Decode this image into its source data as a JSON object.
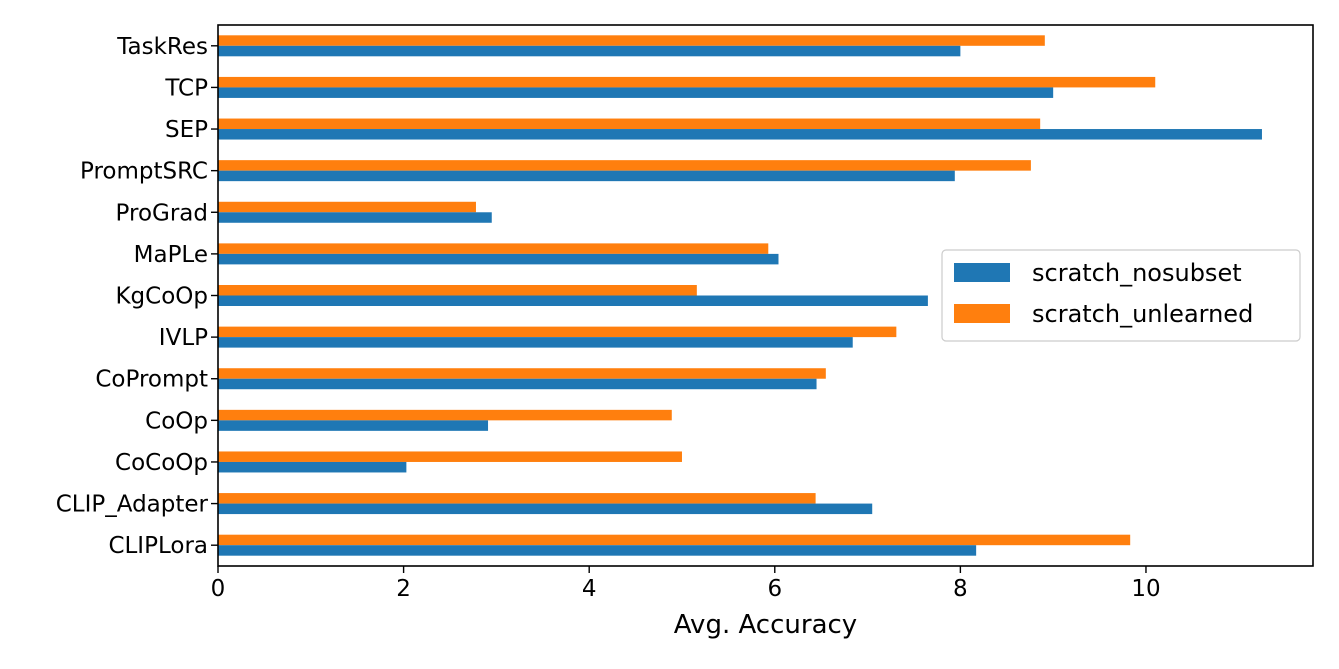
{
  "chart_data": {
    "type": "bar",
    "orientation": "horizontal",
    "categories": [
      "CLIPLora",
      "CLIP_Adapter",
      "CoCoOp",
      "CoOp",
      "CoPrompt",
      "IVLP",
      "KgCoOp",
      "MaPLe",
      "ProGrad",
      "PromptSRC",
      "SEP",
      "TCP",
      "TaskRes"
    ],
    "series": [
      {
        "name": "scratch_nosubset",
        "color": "#1f77b4",
        "values": [
          8.17,
          7.05,
          2.03,
          2.91,
          6.45,
          6.84,
          7.65,
          6.04,
          2.95,
          7.94,
          11.25,
          9.0,
          8.0
        ]
      },
      {
        "name": "scratch_unlearned",
        "color": "#ff7f0e",
        "values": [
          9.83,
          6.44,
          5.0,
          4.89,
          6.55,
          7.31,
          5.16,
          5.93,
          2.78,
          8.76,
          8.86,
          10.1,
          8.91
        ]
      }
    ],
    "xlabel": "Avg. Accuracy",
    "ylabel": "",
    "title": "",
    "xlim": [
      0,
      11.8
    ],
    "xticks": [
      0,
      2,
      4,
      6,
      8,
      10
    ],
    "grid": false,
    "legend_position": "center-right"
  }
}
